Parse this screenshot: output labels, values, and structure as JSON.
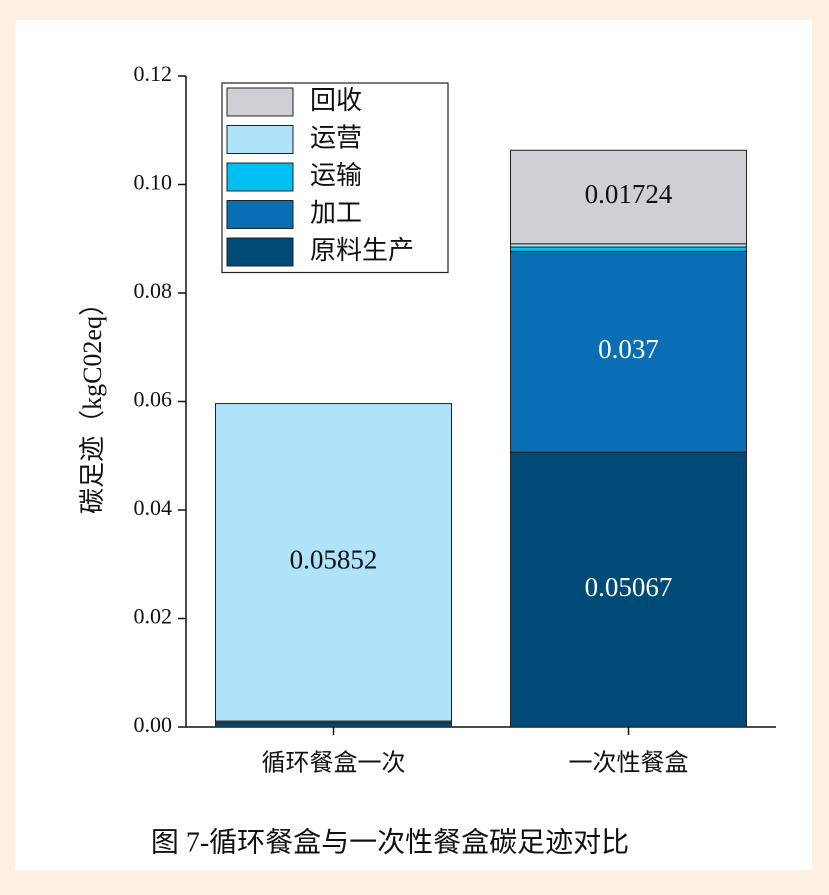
{
  "chart_data": {
    "type": "stacked_bar",
    "caption": "图 7-循环餐盒与一次性餐盒碳足迹对比",
    "y_label": "碳足迹（kgC02eq）",
    "categories": [
      "循环餐盒一次",
      "一次性餐盒"
    ],
    "series": [
      {
        "name": "原料生产",
        "color": "#004a78",
        "label_color": "#ffffff",
        "values": [
          0.0008,
          0.05067
        ],
        "value_labels": [
          null,
          "0.05067"
        ]
      },
      {
        "name": "加工",
        "color": "#0a6eb4",
        "label_color": "#ffffff",
        "values": [
          0.0003,
          0.037
        ],
        "value_labels": [
          null,
          "0.037"
        ]
      },
      {
        "name": "运输",
        "color": "#00bff2",
        "label_color": "#111111",
        "values": [
          0,
          0.0008
        ],
        "value_labels": [
          null,
          null
        ]
      },
      {
        "name": "运营",
        "color": "#aee3f9",
        "label_color": "#111111",
        "values": [
          0.05852,
          0.0006
        ],
        "value_labels": [
          "0.05852",
          null
        ]
      },
      {
        "name": "回收",
        "color": "#d0cfd4",
        "label_color": "#111111",
        "values": [
          0,
          0.01724
        ],
        "value_labels": [
          null,
          "0.01724"
        ]
      }
    ],
    "ylim": [
      0,
      0.12
    ],
    "yticks": [
      {
        "value": 0,
        "label": "0.00"
      },
      {
        "value": 0.02,
        "label": "0.02"
      },
      {
        "value": 0.04,
        "label": "0.04"
      },
      {
        "value": 0.06,
        "label": "0.06"
      },
      {
        "value": 0.08,
        "label": "0.08"
      },
      {
        "value": 0.1,
        "label": "0.10"
      },
      {
        "value": 0.12,
        "label": "0.12"
      }
    ],
    "legend": "upper left"
  }
}
